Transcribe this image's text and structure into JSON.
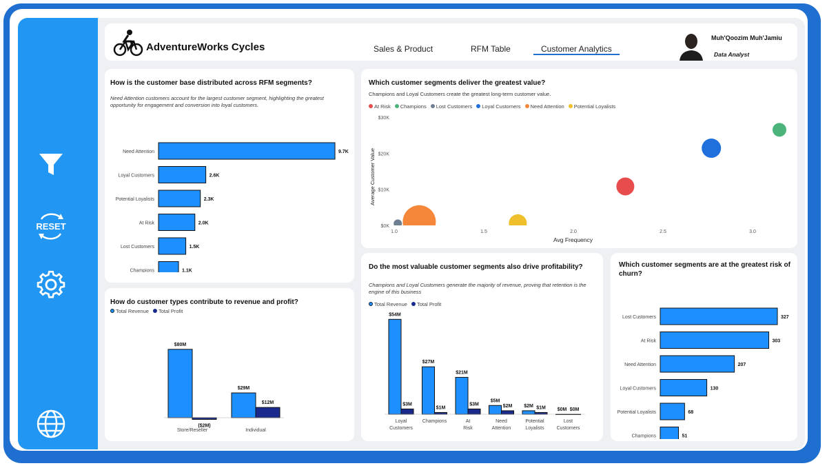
{
  "colors": {
    "accent": "#1e6fcf",
    "bar": "#1e8fff",
    "bar_dark": "#1a2a8c",
    "sidebar": "#2196f3",
    "background": "#eef0f3"
  },
  "sidebar": {
    "items": [
      {
        "name": "filter",
        "icon": "filter-icon"
      },
      {
        "name": "reset",
        "icon": "reset-icon",
        "label": "RESET"
      },
      {
        "name": "settings",
        "icon": "gear-icon"
      },
      {
        "name": "web",
        "icon": "globe-icon"
      }
    ]
  },
  "header": {
    "brand": "AdventureWorks Cycles",
    "logo_icon": "bicycle-icon",
    "tabs": [
      {
        "label": "Sales & Product",
        "active": false
      },
      {
        "label": "RFM Table",
        "active": false
      },
      {
        "label": "Customer Analytics",
        "active": true
      }
    ],
    "user": {
      "name": "Muh'Qoozim Muh'Jamiu",
      "role": "Data Analyst"
    }
  },
  "cards": {
    "rfm_distribution": {
      "title": "How is the customer base distributed across RFM segments?",
      "subtitle": "Need Attention customers account for the largest customer segment, highlighting the greatest opportunity for engagement and conversion into loyal customers."
    },
    "segment_value": {
      "title": "Which customer segments deliver the greatest value?",
      "subtitle": "Champions and Loyal Customers create the greatest long-term customer value."
    },
    "customer_type": {
      "title": "How do customer types contribute to revenue and profit?"
    },
    "profitability": {
      "title": "Do the most valuable customer segments also drive profitability?",
      "subtitle": "Champions and Loyal Customers generate the majority of revenue, proving that retention is the engine of this business"
    },
    "churn_risk": {
      "title": "Which customer segments are at the greatest risk of churn?"
    }
  },
  "chart_data": [
    {
      "id": "rfm_distribution",
      "type": "bar",
      "orientation": "horizontal",
      "categories": [
        "Need Attention",
        "Loyal Customers",
        "Potential Loyalists",
        "At Risk",
        "Lost Customers",
        "Champions"
      ],
      "values": [
        9.7,
        2.6,
        2.3,
        2.0,
        1.5,
        1.1
      ],
      "labels": [
        "9.7K",
        "2.6K",
        "2.3K",
        "2.0K",
        "1.5K",
        "1.1K"
      ],
      "unit": "K customers"
    },
    {
      "id": "segment_value",
      "type": "scatter",
      "xlabel": "Avg Frequency",
      "ylabel": "Average Customer Value",
      "xlim": [
        1.0,
        3.15
      ],
      "ylim": [
        0,
        30000
      ],
      "xticks": [
        "1.0",
        "1.5",
        "2.0",
        "2.5",
        "3.0"
      ],
      "yticks": [
        "$0K",
        "$10K",
        "$20K",
        "$30K"
      ],
      "legend_position": "top-left",
      "series": [
        {
          "name": "At Risk",
          "color": "#e84d4d",
          "x": 2.29,
          "y": 10800,
          "size": 13
        },
        {
          "name": "Champions",
          "color": "#4cb47a",
          "x": 3.15,
          "y": 26500,
          "size": 10
        },
        {
          "name": "Lost Customers",
          "color": "#6e7f92",
          "x": 1.02,
          "y": 500,
          "size": 6
        },
        {
          "name": "Loyal Customers",
          "color": "#1f6fdc",
          "x": 2.77,
          "y": 21400,
          "size": 14
        },
        {
          "name": "Need Attention",
          "color": "#f5873a",
          "x": 1.14,
          "y": 1000,
          "size": 24
        },
        {
          "name": "Potential Loyalists",
          "color": "#efc02c",
          "x": 1.69,
          "y": 600,
          "size": 13
        }
      ]
    },
    {
      "id": "customer_type",
      "type": "bar",
      "categories": [
        "Store/Reseller",
        "Individual"
      ],
      "legend": [
        "Total Revenue",
        "Total Profit"
      ],
      "series": [
        {
          "name": "Total Revenue",
          "values": [
            80,
            29
          ],
          "labels": [
            "$80M",
            "$29M"
          ]
        },
        {
          "name": "Total Profit",
          "values": [
            -2,
            12
          ],
          "labels": [
            "($2M)",
            "$12M"
          ]
        }
      ],
      "unit": "$M"
    },
    {
      "id": "profitability",
      "type": "bar",
      "categories": [
        "Loyal Customers",
        "Champions",
        "At Risk",
        "Need Attention",
        "Potential Loyalists",
        "Lost Customers"
      ],
      "legend": [
        "Total Revenue",
        "Total Profit"
      ],
      "series": [
        {
          "name": "Total Revenue",
          "values": [
            54,
            27,
            21,
            5,
            2,
            0
          ],
          "labels": [
            "$54M",
            "$27M",
            "$21M",
            "$5M",
            "$2M",
            "$0M"
          ]
        },
        {
          "name": "Total Profit",
          "values": [
            3,
            1,
            3,
            2,
            1,
            0
          ],
          "labels": [
            "$3M",
            "$1M",
            "$3M",
            "$2M",
            "$1M",
            "$0M"
          ]
        }
      ],
      "unit": "$M"
    },
    {
      "id": "churn_risk",
      "type": "bar",
      "orientation": "horizontal",
      "categories": [
        "Lost Customers",
        "At Risk",
        "Need Attention",
        "Loyal Customers",
        "Potential Loyalists",
        "Champions"
      ],
      "values": [
        327,
        303,
        207,
        130,
        68,
        51
      ],
      "labels": [
        "327",
        "303",
        "207",
        "130",
        "68",
        "51"
      ]
    }
  ]
}
